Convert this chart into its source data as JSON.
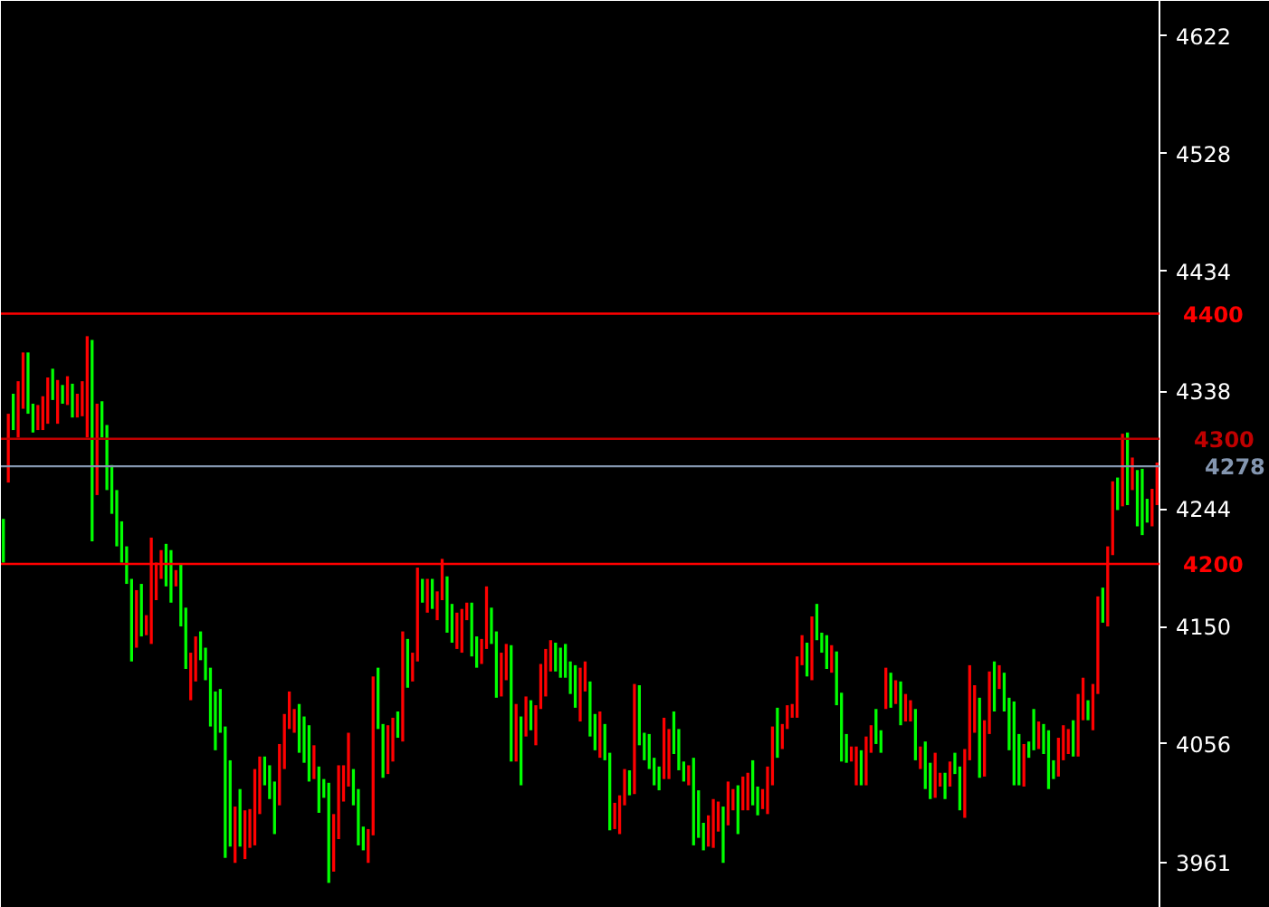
{
  "chart_data": {
    "type": "candlestick",
    "categories": [
      null,
      null,
      null,
      null,
      null,
      null,
      null,
      null,
      null,
      null,
      null,
      null,
      null,
      null,
      null,
      null,
      null,
      null,
      null,
      null,
      null,
      null,
      null,
      null,
      null,
      null,
      null,
      null,
      null,
      null,
      null,
      null,
      null,
      null,
      null,
      null,
      null,
      null,
      null,
      null,
      null,
      null,
      null,
      null,
      null,
      null,
      null,
      null,
      null,
      null,
      null,
      null,
      null,
      null,
      null,
      null,
      null,
      null,
      null,
      null,
      null,
      null,
      null,
      null,
      null,
      null,
      null,
      null,
      null,
      null,
      null,
      null,
      null,
      null,
      null,
      null,
      null,
      null,
      null,
      null,
      null,
      null,
      null,
      null,
      null,
      null,
      null,
      null,
      null,
      null,
      null,
      null,
      null,
      null,
      null,
      null,
      null,
      null,
      null,
      null,
      null,
      null,
      null,
      null,
      null,
      null,
      null,
      null,
      null,
      null,
      null,
      null,
      null,
      null,
      null,
      null,
      null,
      null,
      null,
      null,
      null,
      null,
      null,
      null,
      null,
      null,
      null,
      null,
      null,
      null,
      null,
      null,
      null,
      null,
      null,
      null,
      null,
      null,
      null,
      null,
      null,
      null,
      null,
      null,
      null,
      null,
      null,
      null,
      null,
      null,
      null,
      null,
      null,
      null,
      null,
      null,
      null,
      null,
      null,
      null,
      null,
      null,
      null,
      null,
      null,
      null,
      null,
      null,
      null,
      null,
      null,
      null,
      null,
      null,
      null,
      null,
      null,
      null,
      null,
      null,
      null,
      null,
      null,
      null,
      null,
      null,
      null,
      null,
      null,
      null,
      null,
      null,
      null,
      null,
      null,
      null,
      null,
      null,
      null,
      null,
      null,
      null,
      null,
      null,
      null,
      null,
      null,
      null,
      null,
      null,
      null,
      null,
      null,
      null,
      null,
      null,
      null,
      null,
      null,
      null,
      null,
      null,
      null,
      null,
      null,
      null,
      null,
      null,
      null,
      null,
      null,
      null,
      null,
      null,
      null
    ],
    "ohlc": [
      [
        4201,
        4236,
        4201,
        4236
      ],
      [
        4320,
        4320,
        4265,
        4265
      ],
      [
        4307,
        4336,
        4307,
        4336
      ],
      [
        4346,
        4346,
        4301,
        4301
      ],
      [
        4369,
        4369,
        4324,
        4324
      ],
      [
        4320,
        4369,
        4320,
        4369
      ],
      [
        4305,
        4328,
        4305,
        4328
      ],
      [
        4327,
        4327,
        4307,
        4307
      ],
      [
        4334,
        4334,
        4307,
        4307
      ],
      [
        4349,
        4349,
        4312,
        4312
      ],
      [
        4331,
        4356,
        4331,
        4356
      ],
      [
        4347,
        4347,
        4312,
        4312
      ],
      [
        4328,
        4343,
        4328,
        4343
      ],
      [
        4350,
        4350,
        4327,
        4327
      ],
      [
        4317,
        4344,
        4317,
        4344
      ],
      [
        4336,
        4336,
        4317,
        4317
      ],
      [
        4346,
        4346,
        4318,
        4318
      ],
      [
        4382,
        4382,
        4301,
        4301
      ],
      [
        4218,
        4379,
        4218,
        4379
      ],
      [
        4328,
        4328,
        4255,
        4255
      ],
      [
        4301,
        4330,
        4301,
        4330
      ],
      [
        4259,
        4311,
        4259,
        4311
      ],
      [
        4240,
        4279,
        4240,
        4279
      ],
      [
        4214,
        4259,
        4214,
        4259
      ],
      [
        4201,
        4234,
        4201,
        4234
      ],
      [
        4184,
        4214,
        4184,
        4214
      ],
      [
        4122,
        4188,
        4122,
        4188
      ],
      [
        4179,
        4179,
        4133,
        4133
      ],
      [
        4142,
        4184,
        4142,
        4184
      ],
      [
        4159,
        4159,
        4143,
        4143
      ],
      [
        4221,
        4221,
        4136,
        4136
      ],
      [
        4201,
        4201,
        4171,
        4171
      ],
      [
        4211,
        4211,
        4188,
        4188
      ],
      [
        4182,
        4216,
        4182,
        4216
      ],
      [
        4169,
        4211,
        4169,
        4211
      ],
      [
        4195,
        4195,
        4182,
        4182
      ],
      [
        4150,
        4200,
        4150,
        4200
      ],
      [
        4116,
        4165,
        4116,
        4165
      ],
      [
        4129,
        4129,
        4091,
        4091
      ],
      [
        4142,
        4142,
        4106,
        4106
      ],
      [
        4123,
        4146,
        4123,
        4146
      ],
      [
        4107,
        4133,
        4107,
        4133
      ],
      [
        4070,
        4117,
        4070,
        4117
      ],
      [
        4051,
        4098,
        4051,
        4098
      ],
      [
        4065,
        4100,
        4065,
        4100
      ],
      [
        3965,
        4070,
        3965,
        4070
      ],
      [
        3974,
        4043,
        3974,
        4043
      ],
      [
        4006,
        4006,
        3961,
        3961
      ],
      [
        3974,
        4020,
        3974,
        4020
      ],
      [
        4003,
        4003,
        3964,
        3964
      ],
      [
        4004,
        4004,
        3973,
        3973
      ],
      [
        4036,
        4036,
        3975,
        3975
      ],
      [
        4046,
        4046,
        4000,
        4000
      ],
      [
        4023,
        4046,
        4023,
        4046
      ],
      [
        4012,
        4039,
        4012,
        4039
      ],
      [
        3984,
        4026,
        3984,
        4026
      ],
      [
        4056,
        4056,
        4007,
        4007
      ],
      [
        4080,
        4080,
        4036,
        4036
      ],
      [
        4098,
        4098,
        4068,
        4068
      ],
      [
        4084,
        4084,
        4065,
        4065
      ],
      [
        4049,
        4088,
        4049,
        4088
      ],
      [
        4041,
        4078,
        4041,
        4078
      ],
      [
        4026,
        4071,
        4026,
        4071
      ],
      [
        4055,
        4055,
        4028,
        4028
      ],
      [
        4001,
        4038,
        4001,
        4038
      ],
      [
        4013,
        4028,
        4013,
        4028
      ],
      [
        3945,
        4025,
        3945,
        4025
      ],
      [
        4000,
        4000,
        3954,
        3954
      ],
      [
        4039,
        4039,
        3980,
        3980
      ],
      [
        4039,
        4039,
        4010,
        4010
      ],
      [
        4065,
        4065,
        4022,
        4022
      ],
      [
        4007,
        4036,
        4007,
        4036
      ],
      [
        3975,
        4020,
        3975,
        4020
      ],
      [
        3971,
        3990,
        3971,
        3990
      ],
      [
        3988,
        3988,
        3961,
        3961
      ],
      [
        4110,
        4110,
        3983,
        3983
      ],
      [
        4068,
        4117,
        4068,
        4117
      ],
      [
        4029,
        4072,
        4029,
        4072
      ],
      [
        4071,
        4071,
        4032,
        4032
      ],
      [
        4077,
        4077,
        4042,
        4042
      ],
      [
        4061,
        4082,
        4061,
        4082
      ],
      [
        4146,
        4146,
        4058,
        4058
      ],
      [
        4101,
        4140,
        4101,
        4140
      ],
      [
        4129,
        4129,
        4106,
        4106
      ],
      [
        4197,
        4197,
        4122,
        4122
      ],
      [
        4169,
        4188,
        4169,
        4188
      ],
      [
        4188,
        4188,
        4161,
        4161
      ],
      [
        4164,
        4188,
        4164,
        4188
      ],
      [
        4178,
        4178,
        4155,
        4155
      ],
      [
        4204,
        4204,
        4171,
        4171
      ],
      [
        4145,
        4190,
        4145,
        4190
      ],
      [
        4137,
        4168,
        4137,
        4168
      ],
      [
        4161,
        4161,
        4132,
        4132
      ],
      [
        4164,
        4164,
        4129,
        4129
      ],
      [
        4169,
        4169,
        4155,
        4155
      ],
      [
        4126,
        4169,
        4126,
        4169
      ],
      [
        4117,
        4142,
        4117,
        4142
      ],
      [
        4140,
        4140,
        4120,
        4120
      ],
      [
        4182,
        4182,
        4132,
        4132
      ],
      [
        4136,
        4165,
        4136,
        4165
      ],
      [
        4093,
        4146,
        4093,
        4146
      ],
      [
        4129,
        4129,
        4094,
        4094
      ],
      [
        4136,
        4136,
        4107,
        4107
      ],
      [
        4042,
        4135,
        4042,
        4135
      ],
      [
        4088,
        4088,
        4042,
        4042
      ],
      [
        4023,
        4078,
        4023,
        4078
      ],
      [
        4094,
        4094,
        4062,
        4062
      ],
      [
        4067,
        4091,
        4067,
        4091
      ],
      [
        4087,
        4087,
        4055,
        4055
      ],
      [
        4120,
        4120,
        4084,
        4084
      ],
      [
        4132,
        4132,
        4094,
        4094
      ],
      [
        4139,
        4139,
        4114,
        4114
      ],
      [
        4114,
        4137,
        4114,
        4137
      ],
      [
        4109,
        4133,
        4109,
        4133
      ],
      [
        4109,
        4136,
        4109,
        4136
      ],
      [
        4096,
        4122,
        4096,
        4122
      ],
      [
        4085,
        4119,
        4085,
        4119
      ],
      [
        4117,
        4117,
        4074,
        4074
      ],
      [
        4122,
        4122,
        4098,
        4098
      ],
      [
        4062,
        4106,
        4062,
        4106
      ],
      [
        4051,
        4080,
        4051,
        4080
      ],
      [
        4082,
        4082,
        4045,
        4045
      ],
      [
        4043,
        4072,
        4043,
        4072
      ],
      [
        3987,
        4049,
        3987,
        4049
      ],
      [
        4009,
        4009,
        3988,
        3988
      ],
      [
        4015,
        4015,
        3984,
        3984
      ],
      [
        4036,
        4036,
        4007,
        4007
      ],
      [
        4015,
        4035,
        4015,
        4035
      ],
      [
        4104,
        4104,
        4016,
        4016
      ],
      [
        4055,
        4103,
        4055,
        4103
      ],
      [
        4043,
        4065,
        4043,
        4065
      ],
      [
        4036,
        4064,
        4036,
        4064
      ],
      [
        4023,
        4045,
        4023,
        4045
      ],
      [
        4019,
        4038,
        4019,
        4038
      ],
      [
        4077,
        4077,
        4028,
        4028
      ],
      [
        4068,
        4068,
        4028,
        4028
      ],
      [
        4048,
        4082,
        4048,
        4082
      ],
      [
        4035,
        4068,
        4035,
        4068
      ],
      [
        4026,
        4042,
        4026,
        4042
      ],
      [
        4039,
        4039,
        4023,
        4023
      ],
      [
        3975,
        4045,
        3975,
        4045
      ],
      [
        3981,
        4019,
        3981,
        4019
      ],
      [
        3971,
        3993,
        3971,
        3993
      ],
      [
        3999,
        3999,
        3974,
        3974
      ],
      [
        4012,
        4012,
        3973,
        3973
      ],
      [
        4010,
        4010,
        3986,
        3986
      ],
      [
        3961,
        4006,
        3961,
        4006
      ],
      [
        4026,
        4026,
        3991,
        3991
      ],
      [
        4020,
        4020,
        4003,
        4003
      ],
      [
        3984,
        4023,
        3984,
        4023
      ],
      [
        4030,
        4030,
        4003,
        4003
      ],
      [
        4033,
        4033,
        4003,
        4003
      ],
      [
        4007,
        4043,
        4007,
        4043
      ],
      [
        3999,
        4022,
        3999,
        4022
      ],
      [
        4020,
        4020,
        4004,
        4004
      ],
      [
        4038,
        4038,
        4000,
        4000
      ],
      [
        4070,
        4070,
        4023,
        4023
      ],
      [
        4045,
        4085,
        4045,
        4085
      ],
      [
        4072,
        4072,
        4052,
        4052
      ],
      [
        4087,
        4087,
        4068,
        4068
      ],
      [
        4088,
        4088,
        4077,
        4077
      ],
      [
        4126,
        4126,
        4077,
        4077
      ],
      [
        4143,
        4143,
        4119,
        4119
      ],
      [
        4110,
        4137,
        4110,
        4137
      ],
      [
        4158,
        4158,
        4107,
        4107
      ],
      [
        4139,
        4168,
        4139,
        4168
      ],
      [
        4129,
        4145,
        4129,
        4145
      ],
      [
        4116,
        4143,
        4116,
        4143
      ],
      [
        4135,
        4135,
        4113,
        4113
      ],
      [
        4087,
        4130,
        4087,
        4130
      ],
      [
        4042,
        4097,
        4042,
        4097
      ],
      [
        4041,
        4064,
        4041,
        4064
      ],
      [
        4054,
        4054,
        4042,
        4042
      ],
      [
        4054,
        4054,
        4023,
        4023
      ],
      [
        4023,
        4051,
        4023,
        4051
      ],
      [
        4062,
        4062,
        4023,
        4023
      ],
      [
        4071,
        4071,
        4049,
        4049
      ],
      [
        4056,
        4084,
        4056,
        4084
      ],
      [
        4049,
        4067,
        4049,
        4067
      ],
      [
        4117,
        4117,
        4084,
        4084
      ],
      [
        4085,
        4113,
        4085,
        4113
      ],
      [
        4107,
        4107,
        4088,
        4088
      ],
      [
        4071,
        4106,
        4071,
        4106
      ],
      [
        4096,
        4096,
        4074,
        4074
      ],
      [
        4091,
        4091,
        4074,
        4074
      ],
      [
        4043,
        4084,
        4043,
        4084
      ],
      [
        4054,
        4054,
        4036,
        4036
      ],
      [
        4020,
        4058,
        4020,
        4058
      ],
      [
        4012,
        4041,
        4012,
        4041
      ],
      [
        4049,
        4049,
        4013,
        4013
      ],
      [
        4033,
        4033,
        4022,
        4022
      ],
      [
        4012,
        4033,
        4012,
        4033
      ],
      [
        4042,
        4042,
        4022,
        4022
      ],
      [
        4032,
        4049,
        4032,
        4049
      ],
      [
        4003,
        4038,
        4003,
        4038
      ],
      [
        4052,
        4052,
        3997,
        3997
      ],
      [
        4119,
        4119,
        4043,
        4043
      ],
      [
        4103,
        4103,
        4065,
        4065
      ],
      [
        4029,
        4093,
        4029,
        4093
      ],
      [
        4075,
        4075,
        4030,
        4030
      ],
      [
        4114,
        4114,
        4064,
        4064
      ],
      [
        4082,
        4122,
        4082,
        4122
      ],
      [
        4119,
        4119,
        4100,
        4100
      ],
      [
        4082,
        4113,
        4082,
        4113
      ],
      [
        4051,
        4093,
        4051,
        4093
      ],
      [
        4023,
        4090,
        4023,
        4090
      ],
      [
        4023,
        4064,
        4023,
        4064
      ],
      [
        4056,
        4056,
        4022,
        4022
      ],
      [
        4045,
        4058,
        4045,
        4058
      ],
      [
        4051,
        4084,
        4051,
        4084
      ],
      [
        4074,
        4074,
        4052,
        4052
      ],
      [
        4048,
        4072,
        4048,
        4072
      ],
      [
        4020,
        4067,
        4020,
        4067
      ],
      [
        4028,
        4043,
        4028,
        4043
      ],
      [
        4061,
        4061,
        4030,
        4030
      ],
      [
        4071,
        4071,
        4043,
        4043
      ],
      [
        4068,
        4068,
        4048,
        4048
      ],
      [
        4046,
        4075,
        4046,
        4075
      ],
      [
        4096,
        4096,
        4046,
        4046
      ],
      [
        4109,
        4109,
        4075,
        4075
      ],
      [
        4075,
        4091,
        4075,
        4091
      ],
      [
        4104,
        4104,
        4067,
        4067
      ],
      [
        4174,
        4174,
        4096,
        4096
      ],
      [
        4153,
        4181,
        4153,
        4181
      ],
      [
        4214,
        4214,
        4150,
        4150
      ],
      [
        4266,
        4266,
        4207,
        4207
      ],
      [
        4243,
        4269,
        4243,
        4269
      ],
      [
        4304,
        4304,
        4246,
        4246
      ],
      [
        4247,
        4305,
        4247,
        4305
      ],
      [
        4285,
        4285,
        4259,
        4259
      ],
      [
        4230,
        4275,
        4230,
        4275
      ],
      [
        4223,
        4276,
        4223,
        4276
      ],
      [
        4233,
        4252,
        4233,
        4252
      ],
      [
        4260,
        4260,
        4230,
        4230
      ],
      [
        4281,
        4281,
        4247,
        4247
      ]
    ],
    "colors": [
      "#00ff00",
      "#ff0000",
      "#00ff00",
      "#ff0000",
      "#ff0000",
      "#00ff00",
      "#00ff00",
      "#ff0000",
      "#ff0000",
      "#ff0000",
      "#00ff00",
      "#ff0000",
      "#00ff00",
      "#ff0000",
      "#00ff00",
      "#ff0000",
      "#ff0000",
      "#ff0000",
      "#00ff00",
      "#ff0000",
      "#00ff00",
      "#00ff00",
      "#00ff00",
      "#00ff00",
      "#00ff00",
      "#00ff00",
      "#00ff00",
      "#ff0000",
      "#00ff00",
      "#ff0000",
      "#ff0000",
      "#ff0000",
      "#ff0000",
      "#00ff00",
      "#00ff00",
      "#ff0000",
      "#00ff00",
      "#00ff00",
      "#ff0000",
      "#ff0000",
      "#00ff00",
      "#00ff00",
      "#00ff00",
      "#00ff00",
      "#00ff00",
      "#00ff00",
      "#00ff00",
      "#ff0000",
      "#00ff00",
      "#ff0000",
      "#ff0000",
      "#ff0000",
      "#ff0000",
      "#00ff00",
      "#00ff00",
      "#00ff00",
      "#ff0000",
      "#ff0000",
      "#ff0000",
      "#ff0000",
      "#00ff00",
      "#00ff00",
      "#00ff00",
      "#ff0000",
      "#00ff00",
      "#00ff00",
      "#00ff00",
      "#ff0000",
      "#ff0000",
      "#ff0000",
      "#ff0000",
      "#00ff00",
      "#00ff00",
      "#00ff00",
      "#ff0000",
      "#ff0000",
      "#00ff00",
      "#00ff00",
      "#ff0000",
      "#ff0000",
      "#00ff00",
      "#ff0000",
      "#00ff00",
      "#ff0000",
      "#ff0000",
      "#00ff00",
      "#ff0000",
      "#00ff00",
      "#ff0000",
      "#ff0000",
      "#00ff00",
      "#00ff00",
      "#ff0000",
      "#ff0000",
      "#ff0000",
      "#00ff00",
      "#00ff00",
      "#ff0000",
      "#ff0000",
      "#00ff00",
      "#00ff00",
      "#ff0000",
      "#ff0000",
      "#00ff00",
      "#ff0000",
      "#00ff00",
      "#ff0000",
      "#00ff00",
      "#ff0000",
      "#ff0000",
      "#ff0000",
      "#ff0000",
      "#00ff00",
      "#00ff00",
      "#00ff00",
      "#00ff00",
      "#00ff00",
      "#ff0000",
      "#ff0000",
      "#00ff00",
      "#00ff00",
      "#ff0000",
      "#00ff00",
      "#00ff00",
      "#ff0000",
      "#ff0000",
      "#ff0000",
      "#00ff00",
      "#ff0000",
      "#00ff00",
      "#00ff00",
      "#00ff00",
      "#00ff00",
      "#00ff00",
      "#ff0000",
      "#ff0000",
      "#00ff00",
      "#00ff00",
      "#00ff00",
      "#ff0000",
      "#00ff00",
      "#00ff00",
      "#00ff00",
      "#ff0000",
      "#ff0000",
      "#ff0000",
      "#00ff00",
      "#ff0000",
      "#ff0000",
      "#00ff00",
      "#ff0000",
      "#ff0000",
      "#00ff00",
      "#00ff00",
      "#ff0000",
      "#ff0000",
      "#ff0000",
      "#00ff00",
      "#ff0000",
      "#ff0000",
      "#ff0000",
      "#ff0000",
      "#ff0000",
      "#00ff00",
      "#ff0000",
      "#00ff00",
      "#00ff00",
      "#00ff00",
      "#ff0000",
      "#00ff00",
      "#00ff00",
      "#00ff00",
      "#ff0000",
      "#ff0000",
      "#00ff00",
      "#ff0000",
      "#ff0000",
      "#00ff00",
      "#00ff00",
      "#ff0000",
      "#00ff00",
      "#ff0000",
      "#00ff00",
      "#ff0000",
      "#ff0000",
      "#00ff00",
      "#ff0000",
      "#00ff00",
      "#00ff00",
      "#ff0000",
      "#ff0000",
      "#00ff00",
      "#ff0000",
      "#00ff00",
      "#00ff00",
      "#ff0000",
      "#ff0000",
      "#ff0000",
      "#00ff00",
      "#ff0000",
      "#ff0000",
      "#00ff00",
      "#ff0000",
      "#00ff00",
      "#00ff00",
      "#00ff00",
      "#00ff00",
      "#ff0000",
      "#00ff00",
      "#00ff00",
      "#ff0000",
      "#00ff00",
      "#00ff00",
      "#00ff00",
      "#ff0000",
      "#ff0000",
      "#ff0000",
      "#00ff00",
      "#ff0000",
      "#ff0000",
      "#00ff00",
      "#ff0000",
      "#ff0000",
      "#00ff00",
      "#ff0000",
      "#ff0000",
      "#00ff00",
      "#ff0000",
      "#00ff00",
      "#ff0000",
      "#00ff00",
      "#00ff00",
      "#00ff00",
      "#ff0000",
      "#ff0000"
    ],
    "ylim": [
      3925,
      4650
    ],
    "yticks": [
      3961,
      4056,
      4150,
      4244,
      4338,
      4434,
      4528,
      4622
    ],
    "tick_labels": "y",
    "ref_lines": [
      {
        "axis": "y",
        "value": 4400,
        "label": "4400",
        "color": "#ff0000"
      },
      {
        "axis": "y",
        "value": 4300,
        "label": "4300",
        "color": "#c00000"
      },
      {
        "axis": "y",
        "value": 4278,
        "label": "4278",
        "color": "#8496b0"
      },
      {
        "axis": "y",
        "value": 4200,
        "label": "4200",
        "color": "#ff0000"
      }
    ]
  }
}
